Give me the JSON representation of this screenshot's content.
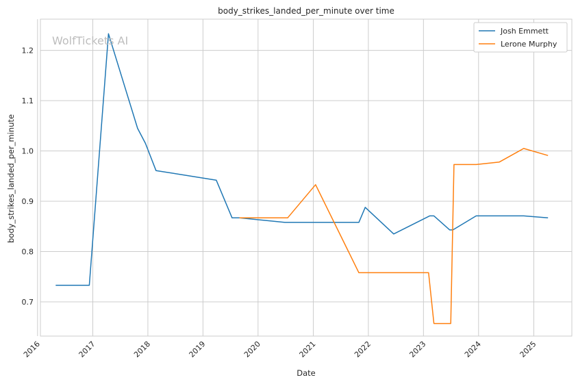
{
  "chart_data": {
    "type": "line",
    "title": "body_strikes_landed_per_minute over time",
    "xlabel": "Date",
    "ylabel": "body_strikes_landed_per_minute",
    "watermark": "WolfTickets AI",
    "xlim": [
      "2016-01-20",
      "2025-09-10"
    ],
    "ylim": [
      0.632,
      1.262
    ],
    "x_ticks": [
      "2016",
      "2017",
      "2018",
      "2019",
      "2020",
      "2021",
      "2022",
      "2023",
      "2024",
      "2025"
    ],
    "y_ticks": [
      0.7,
      0.8,
      0.9,
      1.0,
      1.1,
      1.2
    ],
    "grid": true,
    "legend_position": "top-right",
    "series": [
      {
        "name": "Josh Emmett",
        "color": "#1f77b4",
        "points": [
          [
            "2016-04-30",
            0.733
          ],
          [
            "2016-12-09",
            0.733
          ],
          [
            "2017-04-15",
            1.233
          ],
          [
            "2017-10-25",
            1.045
          ],
          [
            "2017-12-16",
            1.015
          ],
          [
            "2018-02-24",
            0.961
          ],
          [
            "2019-03-30",
            0.942
          ],
          [
            "2019-07-13",
            0.867
          ],
          [
            "2019-08-31",
            0.867
          ],
          [
            "2020-06-27",
            0.858
          ],
          [
            "2021-10-30",
            0.858
          ],
          [
            "2021-12-11",
            0.888
          ],
          [
            "2022-06-18",
            0.835
          ],
          [
            "2023-02-11",
            0.871
          ],
          [
            "2023-03-11",
            0.871
          ],
          [
            "2023-06-24",
            0.843
          ],
          [
            "2023-07-15",
            0.843
          ],
          [
            "2023-12-16",
            0.871
          ],
          [
            "2024-10-26",
            0.871
          ],
          [
            "2025-04-05",
            0.867
          ]
        ]
      },
      {
        "name": "Lerone Murphy",
        "color": "#ff7f0e",
        "points": [
          [
            "2019-08-31",
            0.867
          ],
          [
            "2020-07-15",
            0.867
          ],
          [
            "2021-01-16",
            0.933
          ],
          [
            "2021-10-30",
            0.758
          ],
          [
            "2023-02-04",
            0.758
          ],
          [
            "2023-03-11",
            0.657
          ],
          [
            "2023-07-01",
            0.657
          ],
          [
            "2023-07-22",
            0.973
          ],
          [
            "2023-12-16",
            0.973
          ],
          [
            "2024-05-18",
            0.978
          ],
          [
            "2024-10-26",
            1.005
          ],
          [
            "2025-04-05",
            0.991
          ]
        ]
      }
    ]
  }
}
